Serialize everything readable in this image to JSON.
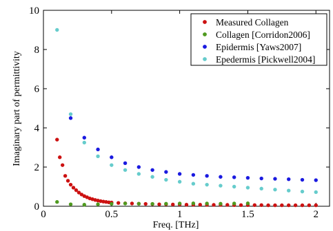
{
  "chart_data": {
    "type": "scatter",
    "title": "",
    "xlabel": "Freq. [THz]",
    "ylabel": "Imaginary part of permittivity",
    "xlim": [
      0,
      2.1
    ],
    "ylim": [
      0,
      10
    ],
    "xticks": [
      "0",
      "0.5",
      "1",
      "1.5",
      "2"
    ],
    "yticks": [
      "0",
      "2",
      "4",
      "6",
      "8",
      "10"
    ],
    "grid": false,
    "legend_position": "top-right",
    "series": [
      {
        "name": "Measured Collagen",
        "color": "#cc1111",
        "x": [
          0.1,
          0.12,
          0.14,
          0.16,
          0.18,
          0.2,
          0.22,
          0.24,
          0.26,
          0.28,
          0.3,
          0.32,
          0.34,
          0.36,
          0.38,
          0.4,
          0.42,
          0.44,
          0.46,
          0.48,
          0.5,
          0.55,
          0.6,
          0.65,
          0.7,
          0.75,
          0.8,
          0.85,
          0.9,
          0.95,
          1.0,
          1.05,
          1.1,
          1.15,
          1.2,
          1.25,
          1.3,
          1.35,
          1.4,
          1.45,
          1.5,
          1.55,
          1.6,
          1.65,
          1.7,
          1.75,
          1.8,
          1.85,
          1.9,
          1.95,
          2.0
        ],
        "y": [
          3.4,
          2.5,
          2.1,
          1.55,
          1.3,
          1.1,
          0.95,
          0.82,
          0.7,
          0.6,
          0.52,
          0.46,
          0.4,
          0.36,
          0.32,
          0.29,
          0.26,
          0.24,
          0.22,
          0.2,
          0.19,
          0.17,
          0.15,
          0.14,
          0.13,
          0.12,
          0.11,
          0.1,
          0.1,
          0.09,
          0.09,
          0.08,
          0.08,
          0.08,
          0.07,
          0.07,
          0.07,
          0.07,
          0.06,
          0.06,
          0.06,
          0.06,
          0.06,
          0.05,
          0.05,
          0.05,
          0.05,
          0.05,
          0.05,
          0.05,
          0.05
        ]
      },
      {
        "name": "Collagen [Corridon2006]",
        "color": "#4f9a1f",
        "x": [
          0.1,
          0.2,
          0.3,
          0.4,
          0.5,
          0.6,
          0.7,
          0.8,
          0.9,
          1.0,
          1.1,
          1.2,
          1.3,
          1.4,
          1.5
        ],
        "y": [
          0.22,
          0.1,
          0.08,
          0.1,
          0.12,
          0.14,
          0.13,
          0.12,
          0.13,
          0.14,
          0.15,
          0.14,
          0.13,
          0.14,
          0.15
        ]
      },
      {
        "name": "Epidermis [Yaws2007]",
        "color": "#1a1ae0",
        "x": [
          0.2,
          0.3,
          0.4,
          0.5,
          0.6,
          0.7,
          0.8,
          0.9,
          1.0,
          1.1,
          1.2,
          1.3,
          1.4,
          1.5,
          1.6,
          1.7,
          1.8,
          1.9,
          2.0
        ],
        "y": [
          4.5,
          3.5,
          2.9,
          2.5,
          2.2,
          2.0,
          1.85,
          1.75,
          1.65,
          1.6,
          1.55,
          1.5,
          1.48,
          1.45,
          1.42,
          1.4,
          1.38,
          1.35,
          1.33
        ]
      },
      {
        "name": "Epedermis [Pickwell2004]",
        "color": "#66cccc",
        "x": [
          0.1,
          0.2,
          0.3,
          0.4,
          0.5,
          0.6,
          0.7,
          0.8,
          0.9,
          1.0,
          1.1,
          1.2,
          1.3,
          1.4,
          1.5,
          1.6,
          1.7,
          1.8,
          1.9,
          2.0
        ],
        "y": [
          9.0,
          4.7,
          3.25,
          2.55,
          2.1,
          1.85,
          1.65,
          1.5,
          1.35,
          1.25,
          1.15,
          1.1,
          1.05,
          1.0,
          0.95,
          0.9,
          0.85,
          0.8,
          0.75,
          0.72
        ]
      }
    ]
  }
}
